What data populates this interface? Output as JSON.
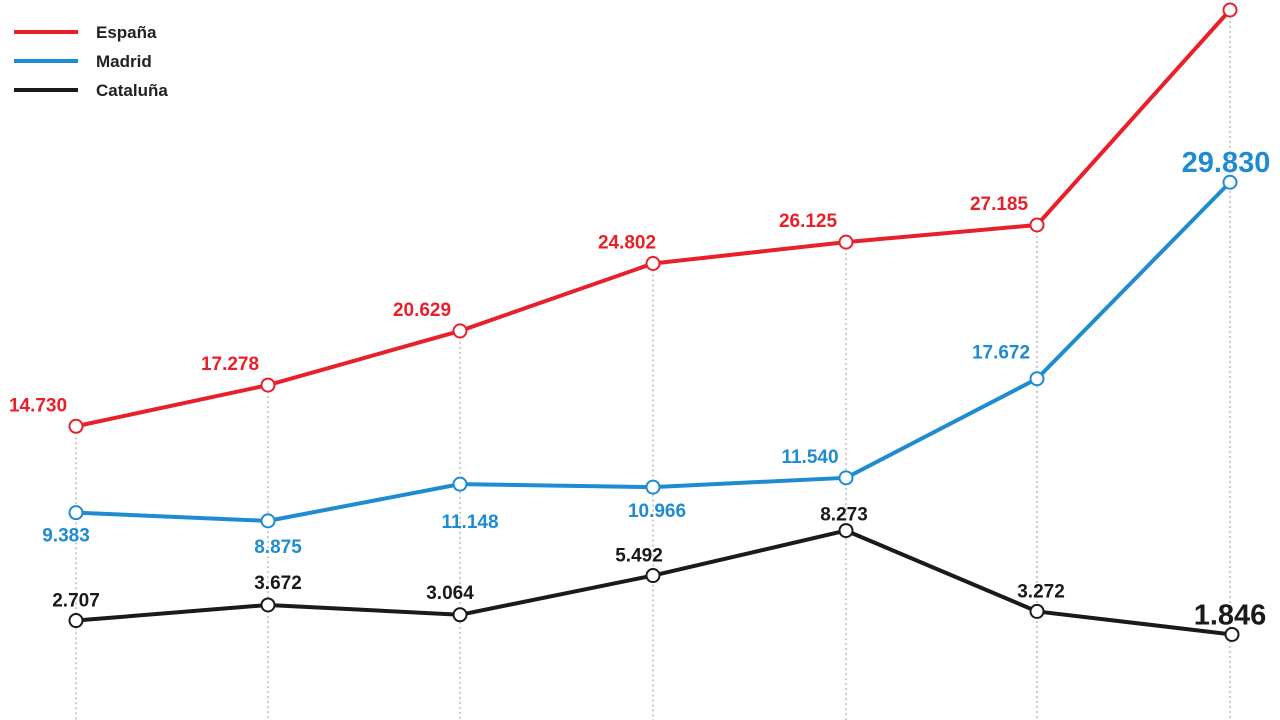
{
  "chart_data": {
    "type": "line",
    "series": [
      {
        "name": "España",
        "color": "#e8202a",
        "values": [
          14730,
          17278,
          20629,
          24802,
          26125,
          27185,
          null
        ],
        "labels": [
          "14.730",
          "17.278",
          "20.629",
          "24.802",
          "26.125",
          "27.185",
          ""
        ]
      },
      {
        "name": "Madrid",
        "color": "#1f8bd0",
        "values": [
          9383,
          8875,
          11148,
          10966,
          11540,
          17672,
          29830
        ],
        "labels": [
          "9.383",
          "8.875",
          "11.148",
          "10.966",
          "11.540",
          "17.672",
          "29.830"
        ]
      },
      {
        "name": "Cataluña",
        "color": "#1a1a1a",
        "values": [
          2707,
          3672,
          3064,
          5492,
          8273,
          3272,
          1846
        ],
        "labels": [
          "2.707",
          "3.672",
          "3.064",
          "5.492",
          "8.273",
          "3.272",
          "1.846"
        ]
      }
    ],
    "note_last_espana_value_not_printed": true,
    "legend_position": "top-left",
    "grid": "vertical dotted lines at each point",
    "xlabel": "",
    "ylabel": ""
  }
}
